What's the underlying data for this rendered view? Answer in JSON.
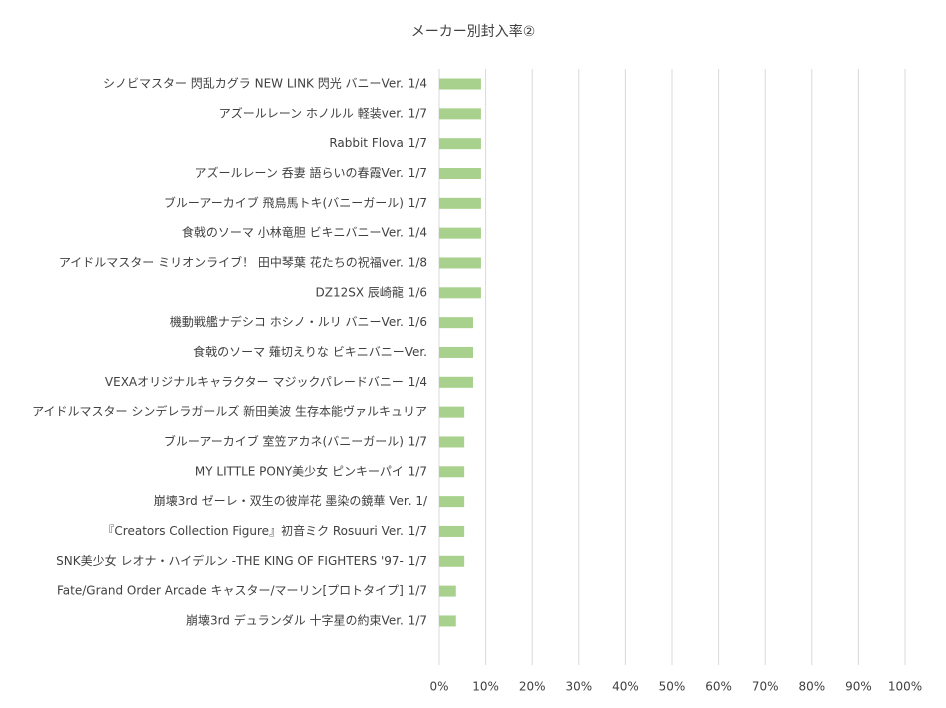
{
  "chart_data": {
    "type": "bar",
    "orientation": "horizontal",
    "title": "メーカー別封入率②",
    "categories": [
      "シノビマスター 閃乱カグラ NEW LINK 閃光 バニーVer. 1/4",
      "アズールレーン ホノルル 軽装ver. 1/7",
      "Rabbit Flova 1/7",
      "アズールレーン 呑妻 語らいの春霞Ver. 1/7",
      "ブルーアーカイブ 飛鳥馬トキ(バニーガール) 1/7",
      "食戟のソーマ 小林竜胆 ビキニバニーVer. 1/4",
      "アイドルマスター ミリオンライブ！ 田中琴葉 花たちの祝福ver. 1/8",
      "DZ12SX 辰崎龍 1/6",
      "機動戦艦ナデシコ ホシノ・ルリ バニーVer. 1/6",
      "食戟のソーマ 薙切えりな ビキニバニーVer.",
      "VEXAオリジナルキャラクター マジックパレードバニー 1/4",
      "アイドルマスター シンデレラガールズ 新田美波 生存本能ヴァルキュリア",
      "ブルーアーカイブ 室笠アカネ(バニーガール) 1/7",
      "MY LITTLE PONY美少女 ピンキーパイ 1/7",
      "崩壊3rd ゼーレ・双生の彼岸花 墨染の鏡華 Ver. 1/",
      "『Creators Collection Figure』初音ミク Rosuuri Ver. 1/7",
      "SNK美少女 レオナ・ハイデルン -THE KING OF FIGHTERS '97- 1/7",
      "Fate/Grand Order Arcade キャスター/マーリン[プロトタイプ] 1/7",
      "崩壊3rd デュランダル 十字星の約束Ver. 1/7"
    ],
    "values": [
      9,
      9,
      9,
      9,
      9,
      9,
      9,
      9,
      7.3,
      7.3,
      7.3,
      5.4,
      5.4,
      5.4,
      5.4,
      5.4,
      5.4,
      3.6,
      3.6
    ],
    "color": "#a9d18e",
    "xlim": [
      0,
      100
    ],
    "xticks": [
      {
        "value": 0,
        "label": "0%"
      },
      {
        "value": 10,
        "label": "10%"
      },
      {
        "value": 20,
        "label": "20%"
      },
      {
        "value": 30,
        "label": "30%"
      },
      {
        "value": 40,
        "label": "40%"
      },
      {
        "value": 50,
        "label": "50%"
      },
      {
        "value": 60,
        "label": "60%"
      },
      {
        "value": 70,
        "label": "70%"
      },
      {
        "value": 80,
        "label": "80%"
      },
      {
        "value": 90,
        "label": "90%"
      },
      {
        "value": 100,
        "label": "100%"
      }
    ],
    "grid": true
  }
}
